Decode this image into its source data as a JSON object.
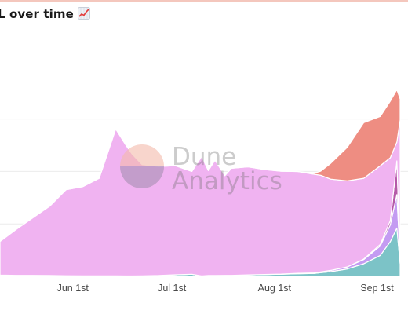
{
  "header": {
    "title": "L over time",
    "title_icon": "chart-increasing-icon"
  },
  "watermark": {
    "line1": "Dune",
    "line2": "Analytics"
  },
  "colors": {
    "pink": "#f0b3f1",
    "salmon": "#ee8d82",
    "teal": "#7cc3c7",
    "lavender": "#c49bf2",
    "magenta": "#b55aa8",
    "gridline": "#ececec",
    "title_border": "#f4c7bd"
  },
  "chart_data": {
    "type": "area",
    "stacked": true,
    "title": "L over time",
    "x_tick_labels": [
      "Jun 1st",
      "Jul 1st",
      "Aug 1st",
      "Sep 1st"
    ],
    "x_ticks": [
      "2021-06-01",
      "2021-07-01",
      "2021-08-01",
      "2021-09-01"
    ],
    "y_tick_labels": [],
    "y_gridlines": 3,
    "grid": true,
    "legend": "none",
    "x": [
      "2021-05-10",
      "2021-05-15",
      "2021-05-20",
      "2021-05-25",
      "2021-05-30",
      "2021-06-04",
      "2021-06-09",
      "2021-06-14",
      "2021-06-17",
      "2021-06-19",
      "2021-06-22",
      "2021-06-27",
      "2021-07-02",
      "2021-07-07",
      "2021-07-10",
      "2021-07-12",
      "2021-07-14",
      "2021-07-17",
      "2021-07-19",
      "2021-07-24",
      "2021-07-29",
      "2021-08-03",
      "2021-08-08",
      "2021-08-13",
      "2021-08-15",
      "2021-08-18",
      "2021-08-23",
      "2021-08-28",
      "2021-09-02",
      "2021-09-05",
      "2021-09-07",
      "2021-09-08"
    ],
    "series": [
      {
        "color": "#7cc3c7",
        "values": [
          0.12,
          0.1,
          0.1,
          0.08,
          0.06,
          0.05,
          0.05,
          0.05,
          0.04,
          0.04,
          0.05,
          0.08,
          0.15,
          0.2,
          0.04,
          0.08,
          0.08,
          0.1,
          0.1,
          0.14,
          0.18,
          0.2,
          0.25,
          0.28,
          0.35,
          0.45,
          0.7,
          1.2,
          2.0,
          3.3,
          4.6,
          1.2
        ]
      },
      {
        "color": "#c49bf2",
        "values": [
          0,
          0,
          0,
          0,
          0,
          0,
          0,
          0,
          0,
          0,
          0,
          0,
          0,
          0,
          0,
          0,
          0,
          0,
          0,
          0,
          0,
          0.02,
          0.04,
          0.05,
          0.08,
          0.12,
          0.2,
          0.4,
          0.9,
          1.6,
          3.2,
          0.5
        ]
      },
      {
        "color": "#b55aa8",
        "values": [
          0,
          0,
          0,
          0,
          0,
          0,
          0,
          0,
          0,
          0,
          0,
          0,
          0,
          0,
          0,
          0,
          0,
          0,
          0,
          0,
          0,
          0,
          0,
          0,
          0,
          0,
          0,
          0.05,
          0.15,
          0.4,
          3.2,
          0.2
        ]
      },
      {
        "color": "#f0b3f1",
        "values": [
          3.2,
          4.4,
          5.5,
          6.6,
          8.2,
          8.5,
          9.3,
          14.0,
          12.5,
          11.6,
          10.6,
          10.4,
          10.4,
          9.8,
          11.4,
          10.0,
          11.0,
          9.5,
          10.2,
          10.3,
          10.0,
          9.8,
          9.7,
          9.4,
          9.2,
          8.7,
          8.2,
          7.7,
          7.5,
          6.0,
          1.8,
          13.0
        ]
      },
      {
        "color": "#ee8d82",
        "values": [
          0,
          0,
          0,
          0,
          0,
          0,
          0,
          0,
          0,
          0,
          0,
          0,
          0,
          0,
          0,
          0,
          0,
          0,
          0,
          0,
          0,
          0,
          0,
          0.1,
          0.4,
          1.5,
          3.2,
          5.3,
          4.7,
          5.4,
          5.0,
          2.0
        ]
      }
    ],
    "ylim": [
      0,
      25
    ]
  }
}
